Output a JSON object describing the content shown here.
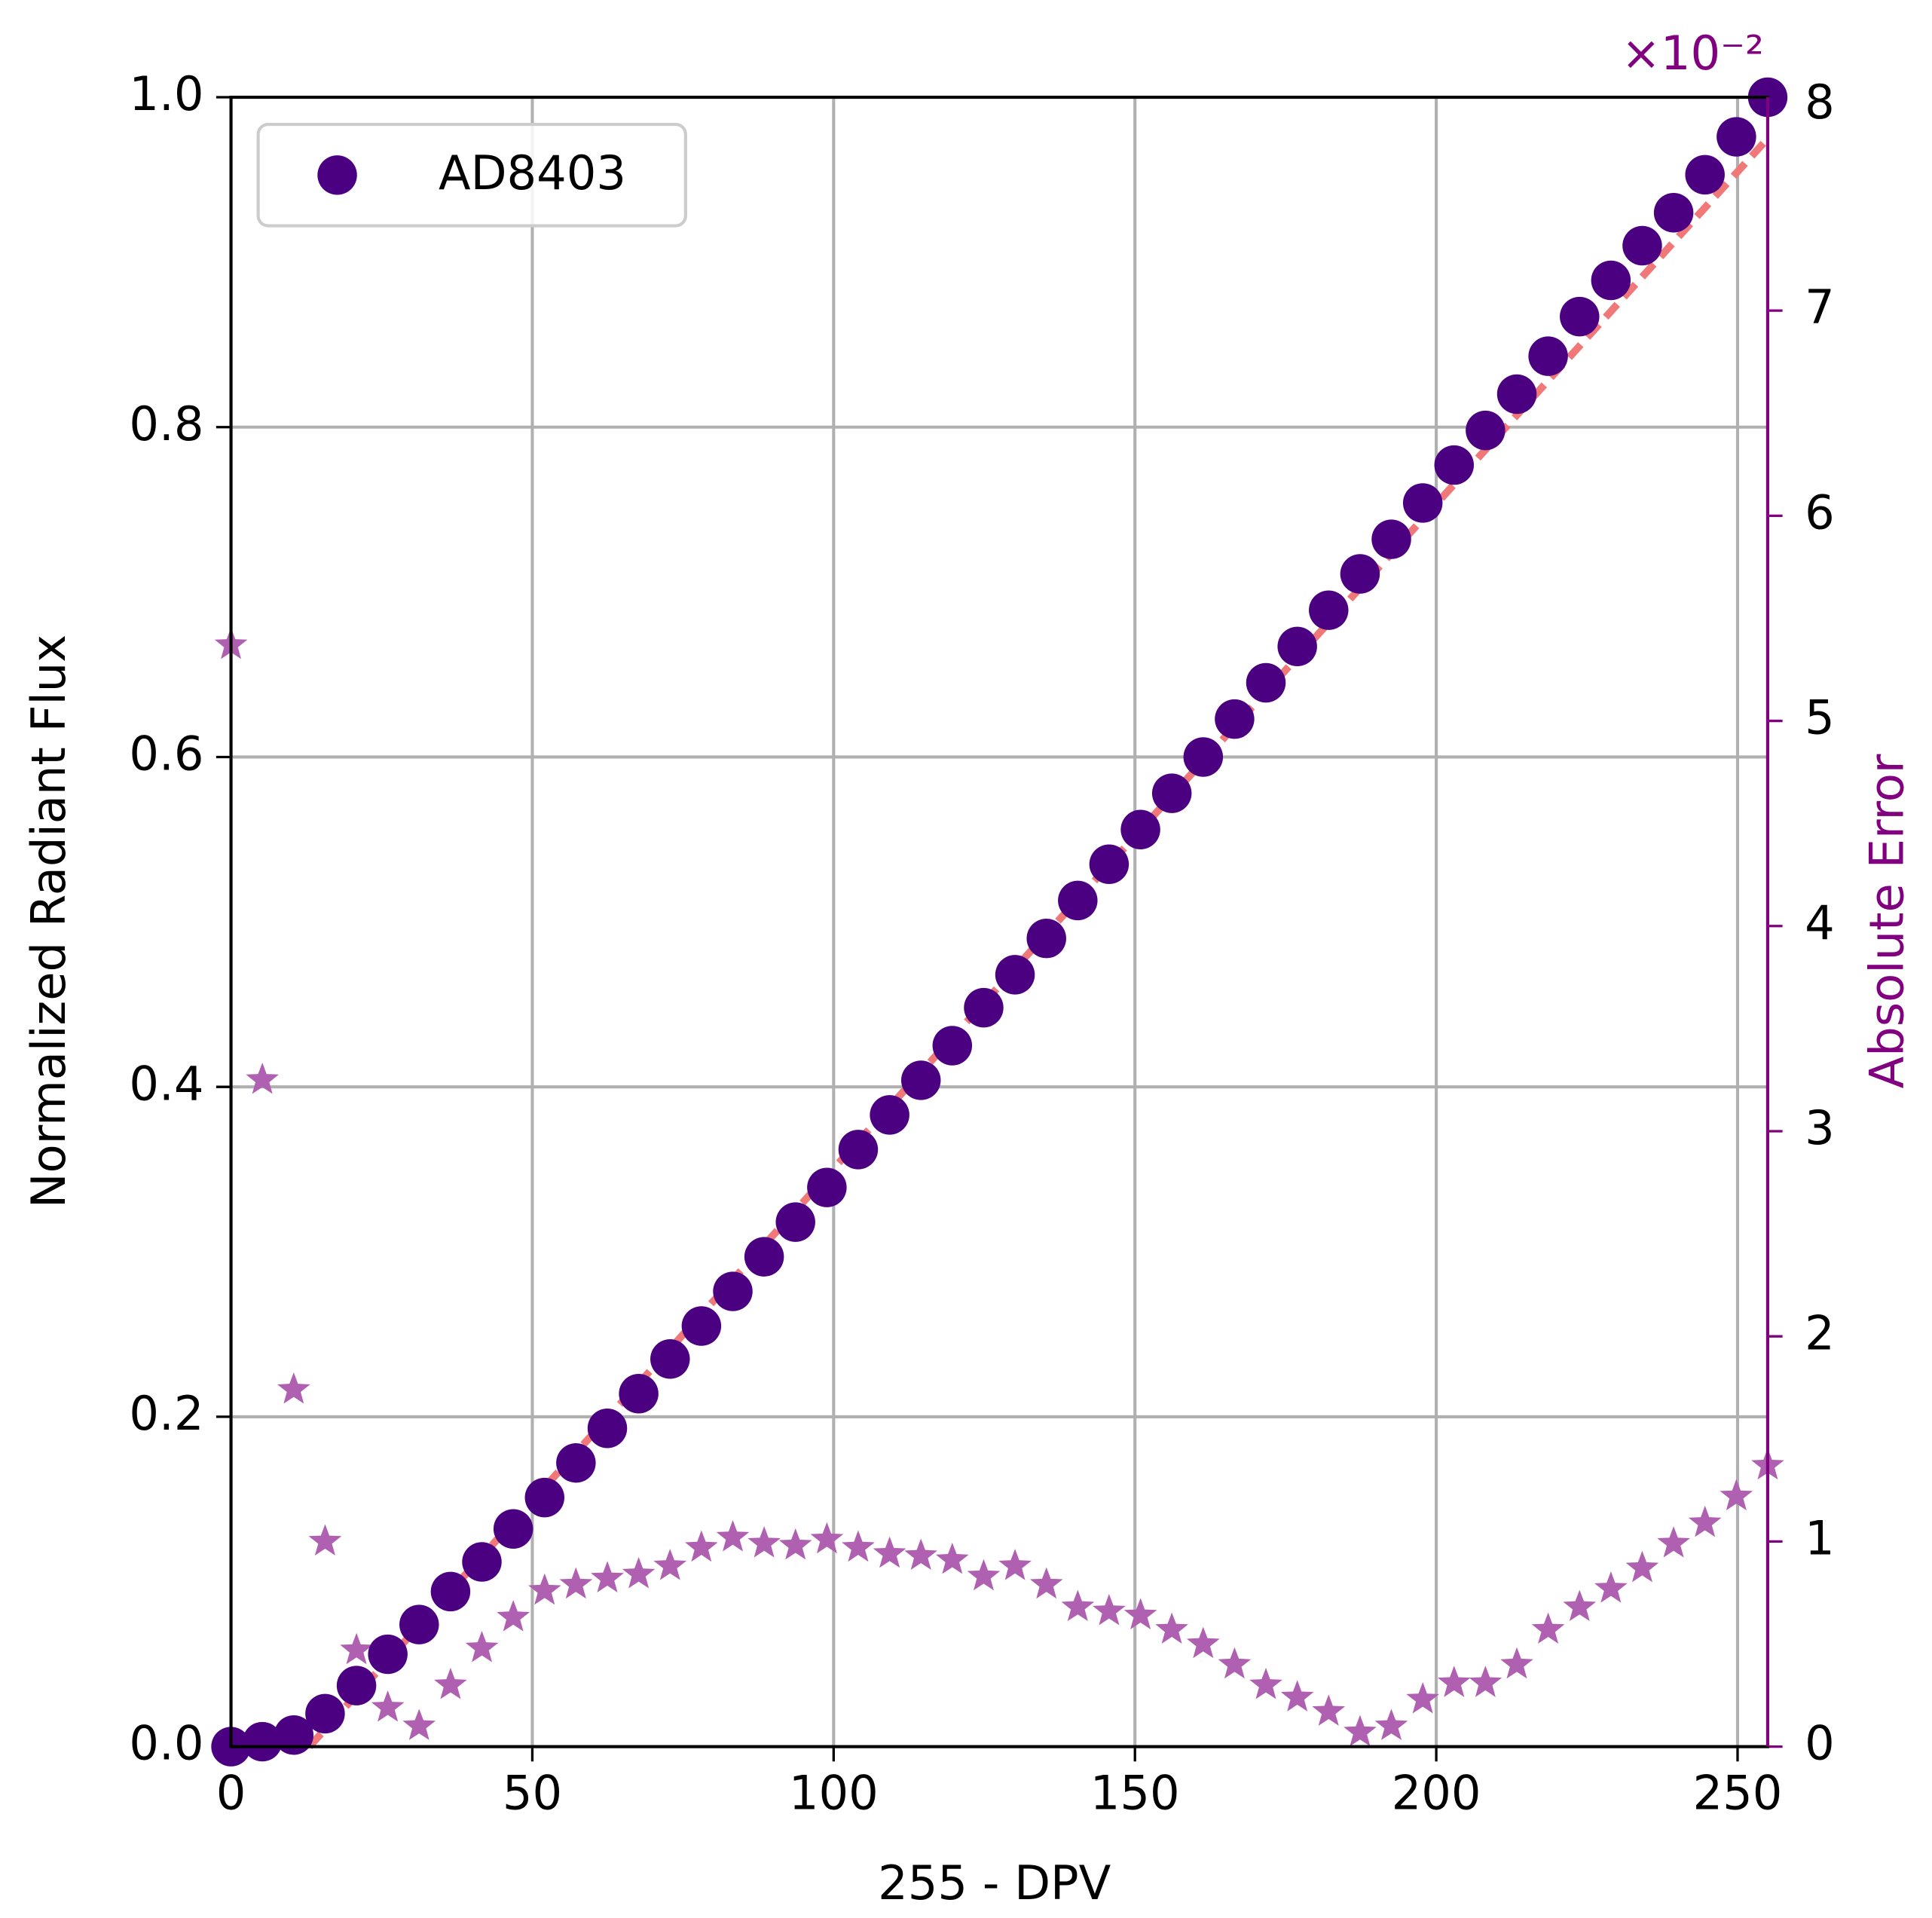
{
  "chart_data": {
    "type": "scatter",
    "xlabel": "255 - DPV",
    "ylabel": "Normalized Radiant Flux",
    "y2label": "Absolute Error",
    "y2_multiplier": "×10⁻²",
    "x": [
      0,
      5.2,
      10.41,
      15.61,
      20.82,
      26.02,
      31.22,
      36.43,
      41.63,
      46.84,
      52.04,
      57.24,
      62.45,
      67.65,
      72.86,
      78.06,
      83.27,
      88.47,
      93.67,
      98.88,
      104.08,
      109.29,
      114.49,
      119.69,
      124.9,
      130.1,
      135.31,
      140.51,
      145.71,
      150.92,
      156.12,
      161.33,
      166.53,
      171.73,
      176.94,
      182.14,
      187.35,
      192.55,
      197.76,
      202.96,
      208.16,
      213.37,
      218.57,
      223.78,
      228.98,
      234.18,
      239.39,
      244.59,
      249.8,
      255
    ],
    "series": [
      {
        "name": "AD8403",
        "color": "#4b0082",
        "marker": "circle",
        "values": [
          0.0,
          0.003,
          0.007,
          0.02,
          0.037,
          0.056,
          0.074,
          0.094,
          0.112,
          0.132,
          0.151,
          0.172,
          0.193,
          0.214,
          0.235,
          0.255,
          0.276,
          0.297,
          0.318,
          0.339,
          0.362,
          0.383,
          0.404,
          0.425,
          0.448,
          0.468,
          0.49,
          0.513,
          0.535,
          0.556,
          0.578,
          0.6,
          0.623,
          0.645,
          0.667,
          0.689,
          0.711,
          0.732,
          0.754,
          0.777,
          0.798,
          0.82,
          0.843,
          0.867,
          0.889,
          0.91,
          0.93,
          0.953,
          0.976,
          1.0
        ]
      },
      {
        "color": "#f07878",
        "marker": "line",
        "x": [
          13,
          255
        ],
        "values": [
          0,
          0.975
        ]
      },
      {
        "color": "#b060b0",
        "marker": "star",
        "axis": "y2",
        "values": [
          5.37,
          3.25,
          1.74,
          1.0,
          0.47,
          0.19,
          0.1,
          0.3,
          0.48,
          0.63,
          0.76,
          0.79,
          0.82,
          0.84,
          0.88,
          0.97,
          1.02,
          0.99,
          0.98,
          1.01,
          0.97,
          0.94,
          0.93,
          0.91,
          0.83,
          0.88,
          0.79,
          0.68,
          0.66,
          0.64,
          0.57,
          0.5,
          0.4,
          0.3,
          0.24,
          0.17,
          0.07,
          0.1,
          0.23,
          0.31,
          0.31,
          0.4,
          0.57,
          0.68,
          0.77,
          0.87,
          0.99,
          1.09,
          1.22,
          1.37
        ]
      }
    ],
    "xlim": [
      0,
      255
    ],
    "xticks": [
      0,
      50,
      100,
      150,
      200,
      250
    ],
    "ylim": [
      0,
      1
    ],
    "yticks": [
      {
        "value": 0,
        "label": "0.0"
      },
      0.2,
      0.4,
      0.6,
      0.8,
      {
        "value": 1,
        "label": "1.0"
      }
    ],
    "y2lim": [
      0,
      8.04
    ],
    "y2ticks": [
      0,
      1,
      2,
      3,
      4,
      5,
      6,
      7,
      8
    ],
    "y2color": "#800080",
    "grid": true,
    "legend": "upper left"
  }
}
